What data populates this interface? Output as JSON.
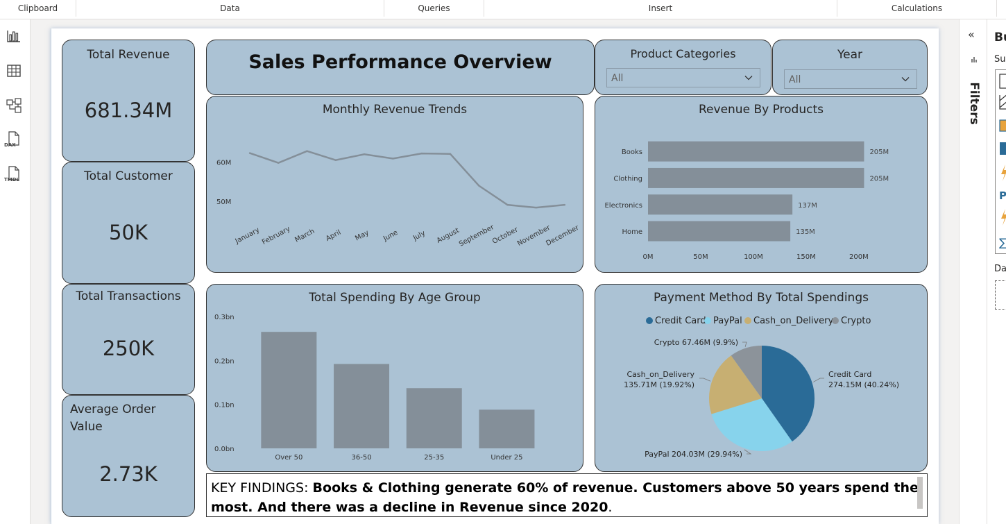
{
  "ribbon": {
    "groups": [
      "Clipboard",
      "Data",
      "Queries",
      "Insert",
      "Calculations"
    ]
  },
  "left_rail": {
    "icons": [
      "report-view-icon",
      "table-view-icon",
      "model-view-icon",
      "dax-query-icon",
      "tmdl-view-icon"
    ],
    "dax_label": "DAX",
    "tmdl_label": "TMDL"
  },
  "right_panel": {
    "filters_label": "Filters",
    "collapse_glyph": "«",
    "build_title": "Bu",
    "suggest_label": "Sug",
    "data_label": "Da"
  },
  "kpis": [
    {
      "title": "Total Revenue",
      "value": "681.34M"
    },
    {
      "title": "Total Customer",
      "value": "50K"
    },
    {
      "title": "Total Transactions",
      "value": "250K"
    },
    {
      "title": "Average Order Value",
      "value": "2.73K"
    }
  ],
  "header": {
    "title": "Sales Performance Overview"
  },
  "slicers": {
    "category": {
      "title": "Product Categories",
      "value": "All"
    },
    "year": {
      "title": "Year",
      "value": "All"
    }
  },
  "findings": {
    "prefix": "KEY FINDINGS: ",
    "bold_text": "Books & Clothing generate 60% of revenue. Customers above 50 years  spend the most. And there was a decline in Revenue since 2020",
    "suffix": "."
  },
  "colors": {
    "card_bg": "#abc2d4",
    "bar_gray": "#848f99",
    "line_gray": "#848f99",
    "credit_card": "#2a6b97",
    "paypal": "#87d3ec",
    "cash_on_delivery": "#c7af72",
    "crypto": "#8c939a"
  },
  "chart_data": [
    {
      "type": "line",
      "title": "Monthly Revenue Trends",
      "x": [
        "January",
        "February",
        "March",
        "April",
        "May",
        "June",
        "July",
        "August",
        "September",
        "October",
        "November",
        "December"
      ],
      "series": [
        {
          "values": [
            62.3,
            59.8,
            62.8,
            60.5,
            62.0,
            60.9,
            62.2,
            62.1,
            54.0,
            49.1,
            48.4,
            49.1
          ]
        }
      ],
      "yticks": [
        "50M",
        "60M"
      ],
      "ylim": [
        44,
        67
      ],
      "grid": false
    },
    {
      "type": "bar",
      "orientation": "horizontal",
      "title": "Revenue By Products",
      "categories": [
        "Books",
        "Clothing",
        "Electronics",
        "Home"
      ],
      "values": [
        205,
        205,
        137,
        135
      ],
      "data_labels": [
        "205M",
        "205M",
        "137M",
        "135M"
      ],
      "xticks": [
        "0M",
        "50M",
        "100M",
        "150M",
        "200M"
      ],
      "xlim": [
        0,
        208
      ],
      "grid": false
    },
    {
      "type": "bar",
      "title": "Total Spending By Age Group",
      "categories": [
        "Over 50",
        "36-50",
        "25-35",
        "Under 25"
      ],
      "values": [
        0.265,
        0.192,
        0.137,
        0.088
      ],
      "yticks": [
        "0.0bn",
        "0.1bn",
        "0.2bn",
        "0.3bn"
      ],
      "ylim": [
        0,
        0.3
      ],
      "grid": false
    },
    {
      "type": "pie",
      "title": "Payment Method By Total Spendings",
      "legend": [
        "Credit Card",
        "PayPal",
        "Cash_on_Delivery",
        "Crypto"
      ],
      "legend_position": "top",
      "slices": [
        {
          "name": "Credit Card",
          "value": 274.15,
          "pct": 40.24,
          "label_line1": "Credit Card",
          "label_line2": "274.15M (40.24%)"
        },
        {
          "name": "PayPal",
          "value": 204.03,
          "pct": 29.94,
          "label_line1": "PayPal 204.03M (29.94%)",
          "label_line2": ""
        },
        {
          "name": "Cash_on_Delivery",
          "value": 135.71,
          "pct": 19.92,
          "label_line1": "Cash_on_Delivery",
          "label_line2": "135.71M (19.92%)"
        },
        {
          "name": "Crypto",
          "value": 67.46,
          "pct": 9.9,
          "label_line1": "Crypto 67.46M (9.9%)",
          "label_line2": ""
        }
      ]
    }
  ]
}
